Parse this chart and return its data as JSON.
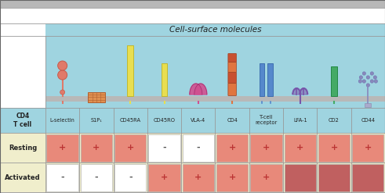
{
  "title": "Cell-surface molecules",
  "columns": [
    "L-selectin",
    "S1P₁",
    "CD45RA",
    "CD45RO",
    "VLA-4",
    "CD4",
    "T-cell\nreceptor",
    "LFA-1",
    "CD2",
    "CD44"
  ],
  "resting": [
    "+",
    "+",
    "+",
    "-",
    "-",
    "+",
    "+",
    "+",
    "+",
    "+"
  ],
  "activated": [
    "-",
    "-",
    "-",
    "+",
    "+",
    "+",
    "+",
    "",
    "",
    ""
  ],
  "resting_colors": [
    "#e8897a",
    "#e8897a",
    "#e8897a",
    "#ffffff",
    "#ffffff",
    "#e8897a",
    "#e8897a",
    "#e8897a",
    "#e8897a",
    "#e8897a"
  ],
  "activated_colors": [
    "#ffffff",
    "#ffffff",
    "#ffffff",
    "#e8897a",
    "#e8897a",
    "#e8897a",
    "#e8897a",
    "#c06060",
    "#c06060",
    "#c06060"
  ],
  "bg_blue": "#9fd4e0",
  "bg_yellow": "#f0eecc",
  "border_color": "#999999",
  "sign_plus_color": "#bb3333",
  "sign_minus_color": "#555555"
}
